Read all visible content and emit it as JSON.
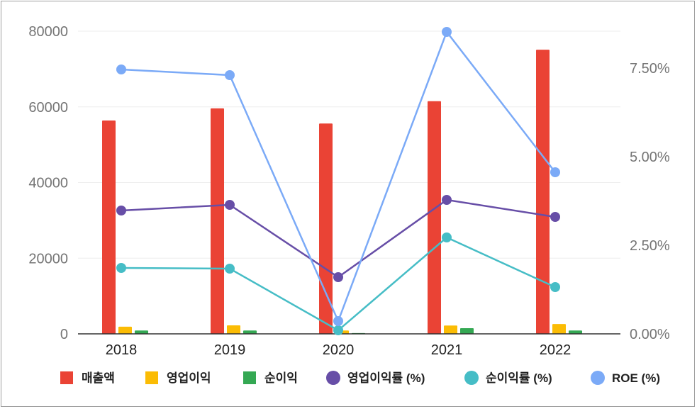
{
  "chart_data": {
    "type": "bar+line",
    "categories": [
      "2018",
      "2019",
      "2020",
      "2021",
      "2022"
    ],
    "left_axis": {
      "ylim": [
        0,
        80000
      ],
      "ticks": [
        "0",
        "20000",
        "40000",
        "60000",
        "80000"
      ],
      "tick_values": [
        0,
        20000,
        40000,
        60000,
        80000
      ]
    },
    "right_axis": {
      "ylim": [
        0,
        8.5
      ],
      "ticks": [
        "0.00%",
        "2.50%",
        "5.00%",
        "7.50%"
      ],
      "tick_values": [
        0,
        2.5,
        5,
        7.5
      ]
    },
    "grid": true,
    "legend_position": "bottom",
    "bar_series": [
      {
        "name": "매출액",
        "color": "#ea4335",
        "values": [
          56400,
          59600,
          55600,
          61500,
          75100
        ]
      },
      {
        "name": "영업이익",
        "color": "#fbbc04",
        "values": [
          1900,
          2250,
          900,
          2200,
          2600
        ]
      },
      {
        "name": "순이익",
        "color": "#34a853",
        "values": [
          900,
          900,
          200,
          1500,
          900
        ]
      }
    ],
    "line_series": [
      {
        "name": "영업이익률 (%)",
        "color": "#674ea7",
        "values": [
          3.48,
          3.64,
          1.6,
          3.78,
          3.3
        ]
      },
      {
        "name": "순이익률 (%)",
        "color": "#46bdc6",
        "values": [
          1.86,
          1.84,
          0.1,
          2.72,
          1.32
        ]
      },
      {
        "name": "ROE (%)",
        "color": "#7baaf7",
        "values": [
          7.46,
          7.3,
          0.36,
          8.52,
          4.56
        ]
      }
    ]
  }
}
